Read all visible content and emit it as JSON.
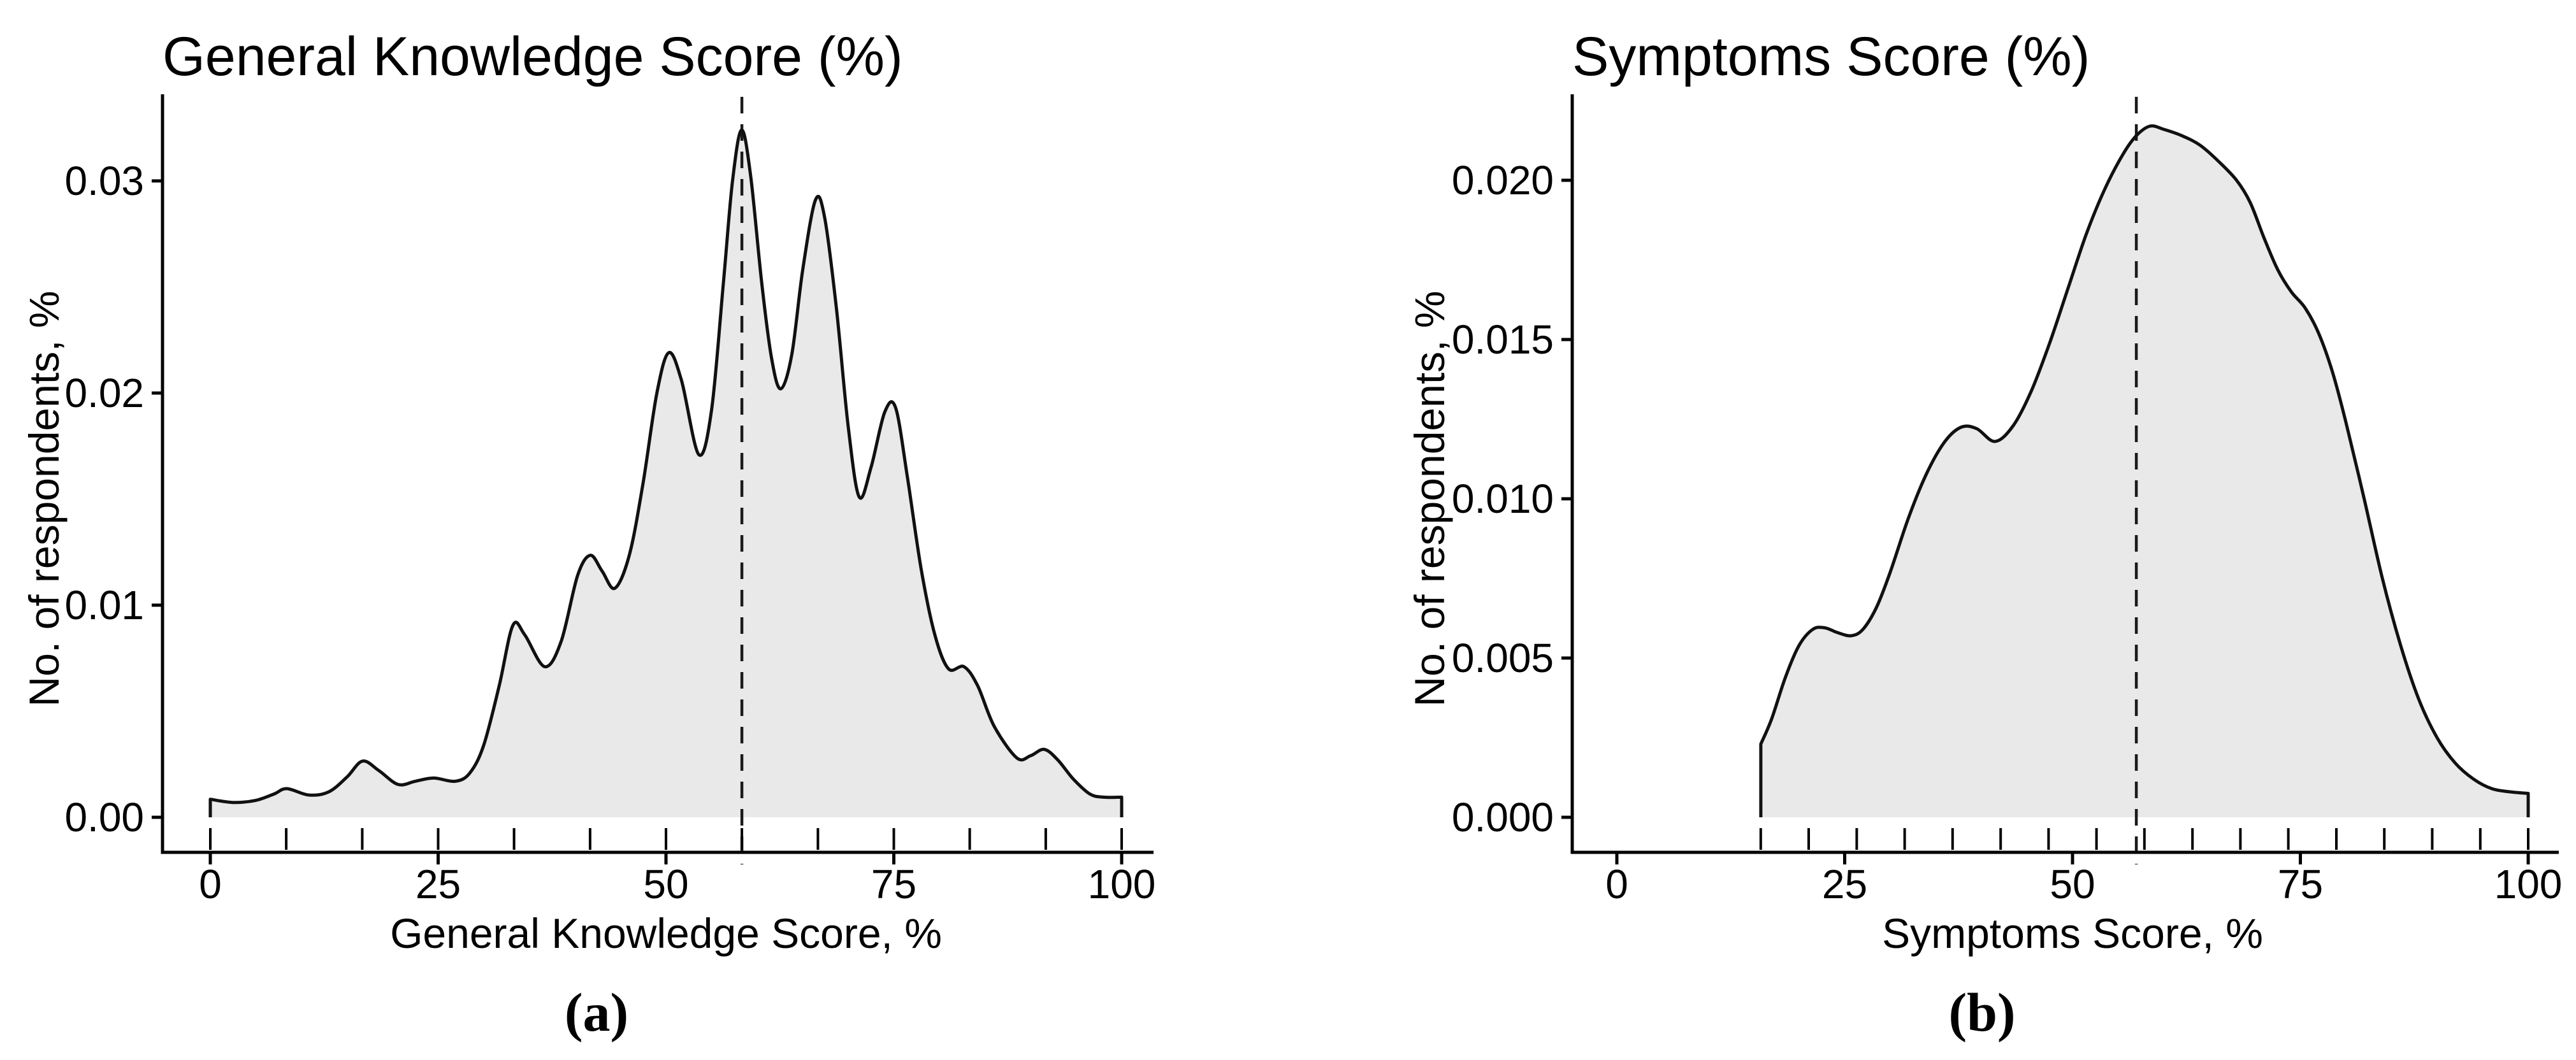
{
  "figure": {
    "background_color": "#ffffff",
    "text_color": "#000000",
    "curve_color": "#111111",
    "fill_color": "#e9e9e9",
    "dashed_line_color": "#1a1a1a"
  },
  "panels": [
    {
      "title": "General Knowledge Score (%)",
      "x_axis_title": "General Knowledge Score, %",
      "y_axis_title": "No. of respondents, %",
      "caption": "(a)"
    },
    {
      "title": "Symptoms Score (%)",
      "x_axis_title": "Symptoms Score, %",
      "y_axis_title": "No. of respondents, %",
      "caption": "(b)"
    }
  ],
  "chart_data": [
    {
      "type": "area",
      "title": "General Knowledge Score (%)",
      "xlabel": "General Knowledge Score, %",
      "ylabel": "No. of respondents, %",
      "xlim": [
        0,
        100
      ],
      "ylim": [
        0,
        0.034
      ],
      "grid": false,
      "legend": "none",
      "x_ticks": [
        0,
        25,
        50,
        75,
        100
      ],
      "x_tick_labels": [
        "0",
        "25",
        "50",
        "75",
        "100"
      ],
      "y_ticks": [
        0,
        0.01,
        0.02,
        0.03
      ],
      "y_tick_labels": [
        "0.00",
        "0.01",
        "0.02",
        "0.03"
      ],
      "rug_ticks": [
        0,
        8.33,
        16.67,
        25,
        33.33,
        41.67,
        50,
        58.33,
        66.67,
        75,
        83.33,
        91.67,
        100
      ],
      "dashed_line_x": 58.33,
      "curve": [
        [
          0,
          0.00085
        ],
        [
          2.5,
          0.0007
        ],
        [
          5,
          0.0008
        ],
        [
          7,
          0.0011
        ],
        [
          8.4,
          0.00135
        ],
        [
          10.8,
          0.00105
        ],
        [
          13,
          0.0012
        ],
        [
          15,
          0.0019
        ],
        [
          16.7,
          0.00265
        ],
        [
          18.5,
          0.0022
        ],
        [
          20.6,
          0.00155
        ],
        [
          22.5,
          0.0017
        ],
        [
          24.5,
          0.00185
        ],
        [
          26.9,
          0.0017
        ],
        [
          28.5,
          0.0021
        ],
        [
          30,
          0.0034
        ],
        [
          31.7,
          0.0062
        ],
        [
          33.2,
          0.00905
        ],
        [
          34.5,
          0.0086
        ],
        [
          36.7,
          0.0071
        ],
        [
          38.5,
          0.0083
        ],
        [
          40.3,
          0.0114
        ],
        [
          41.7,
          0.01235
        ],
        [
          43,
          0.0116
        ],
        [
          44.4,
          0.0108
        ],
        [
          46,
          0.0124
        ],
        [
          47.5,
          0.0158
        ],
        [
          49,
          0.02
        ],
        [
          50.3,
          0.0219
        ],
        [
          51.7,
          0.0206
        ],
        [
          53.6,
          0.0171
        ],
        [
          55,
          0.0192
        ],
        [
          56.3,
          0.0252
        ],
        [
          57.3,
          0.03
        ],
        [
          58.3,
          0.0324
        ],
        [
          59.3,
          0.0302
        ],
        [
          60.5,
          0.0252
        ],
        [
          61.6,
          0.0216
        ],
        [
          62.6,
          0.0202
        ],
        [
          63.8,
          0.0218
        ],
        [
          65,
          0.0258
        ],
        [
          66.4,
          0.0291
        ],
        [
          67.4,
          0.0283
        ],
        [
          68.7,
          0.024
        ],
        [
          70,
          0.0184
        ],
        [
          71.2,
          0.0151
        ],
        [
          72.5,
          0.0165
        ],
        [
          74,
          0.0191
        ],
        [
          75.2,
          0.0193
        ],
        [
          76.5,
          0.016
        ],
        [
          78,
          0.0117
        ],
        [
          79.5,
          0.0086
        ],
        [
          81,
          0.007
        ],
        [
          82.7,
          0.0071
        ],
        [
          84.2,
          0.0062
        ],
        [
          86,
          0.0043
        ],
        [
          88.5,
          0.0028
        ],
        [
          90,
          0.0029
        ],
        [
          91.5,
          0.0032
        ],
        [
          93,
          0.0027
        ],
        [
          94.7,
          0.0018
        ],
        [
          96.5,
          0.0011
        ],
        [
          98,
          0.00095
        ],
        [
          100,
          0.00095
        ]
      ]
    },
    {
      "type": "area",
      "title": "Symptoms Score (%)",
      "xlabel": "Symptoms Score, %",
      "ylabel": "No. of respondents, %",
      "xlim": [
        0,
        100
      ],
      "ylim": [
        0,
        0.0227
      ],
      "grid": false,
      "legend": "none",
      "x_ticks": [
        0,
        25,
        50,
        75,
        100
      ],
      "x_tick_labels": [
        "0",
        "25",
        "50",
        "75",
        "100"
      ],
      "y_ticks": [
        0,
        0.005,
        0.01,
        0.015,
        0.02
      ],
      "y_tick_labels": [
        "0.000",
        "0.005",
        "0.010",
        "0.015",
        "0.020"
      ],
      "rug_ticks": [
        15.79,
        21.05,
        26.32,
        31.58,
        36.84,
        42.11,
        47.37,
        52.63,
        57.89,
        63.16,
        68.42,
        73.68,
        78.95,
        84.21,
        89.47,
        94.74,
        100
      ],
      "dashed_line_x": 57.0,
      "curve": [
        [
          15.8,
          0.0023
        ],
        [
          17,
          0.0031
        ],
        [
          18.5,
          0.0044
        ],
        [
          20,
          0.0054
        ],
        [
          21.5,
          0.0059
        ],
        [
          22.8,
          0.00595
        ],
        [
          24.2,
          0.0058
        ],
        [
          25.7,
          0.0057
        ],
        [
          27,
          0.0059
        ],
        [
          28.5,
          0.0066
        ],
        [
          30,
          0.0077
        ],
        [
          32,
          0.0094
        ],
        [
          34,
          0.0108
        ],
        [
          36,
          0.0118
        ],
        [
          37.8,
          0.01225
        ],
        [
          39.5,
          0.0122
        ],
        [
          41.5,
          0.0118
        ],
        [
          43.5,
          0.0123
        ],
        [
          45.5,
          0.0134
        ],
        [
          47.5,
          0.0149
        ],
        [
          49.5,
          0.0166
        ],
        [
          51.5,
          0.0183
        ],
        [
          53.5,
          0.0197
        ],
        [
          55.5,
          0.0208
        ],
        [
          57,
          0.0214
        ],
        [
          58.5,
          0.0217
        ],
        [
          60,
          0.0216
        ],
        [
          62,
          0.0214
        ],
        [
          64,
          0.0211
        ],
        [
          66,
          0.0206
        ],
        [
          68,
          0.02
        ],
        [
          69.5,
          0.0193
        ],
        [
          71,
          0.0182
        ],
        [
          72.5,
          0.0172
        ],
        [
          74,
          0.0165
        ],
        [
          75.5,
          0.016
        ],
        [
          77,
          0.0152
        ],
        [
          78.5,
          0.014
        ],
        [
          80,
          0.0124
        ],
        [
          82,
          0.01
        ],
        [
          84,
          0.0075
        ],
        [
          86,
          0.0054
        ],
        [
          88,
          0.0037
        ],
        [
          90,
          0.0025
        ],
        [
          92,
          0.0017
        ],
        [
          94,
          0.0012
        ],
        [
          96,
          0.0009
        ],
        [
          98,
          0.0008
        ],
        [
          100,
          0.00075
        ]
      ]
    }
  ]
}
